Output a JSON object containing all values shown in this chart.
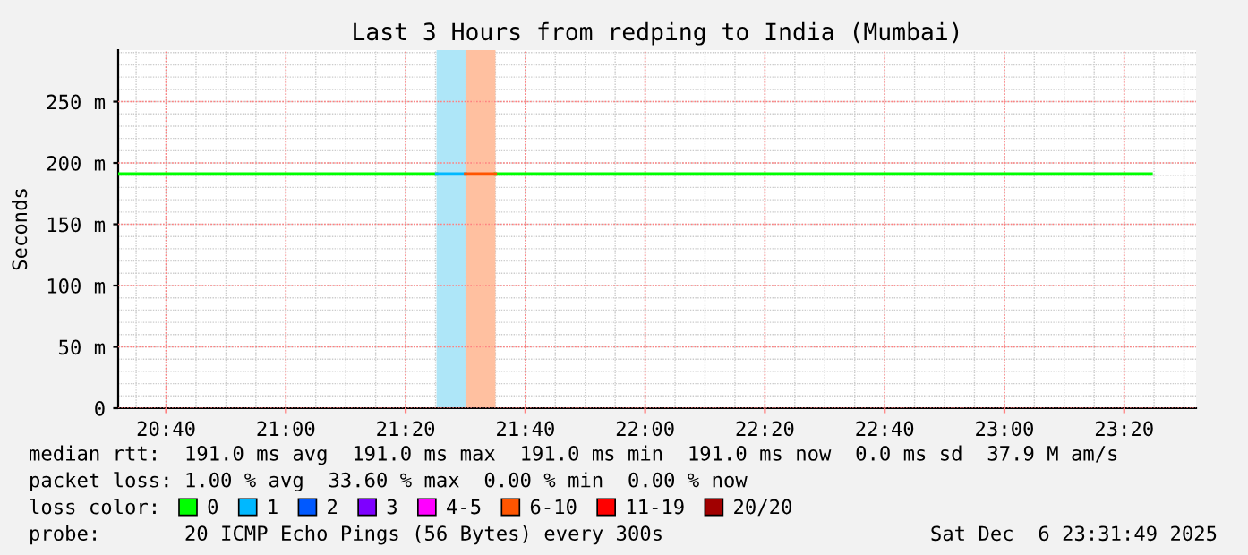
{
  "chart_data": {
    "type": "line",
    "title": "Last 3 Hours from redping to India (Mumbai)",
    "ylabel": "Seconds",
    "xlim": [
      20.5333,
      23.5333
    ],
    "xticks": [
      {
        "value": 20.6667,
        "label": "20:40"
      },
      {
        "value": 21.0,
        "label": "21:00"
      },
      {
        "value": 21.3333,
        "label": "21:20"
      },
      {
        "value": 21.6667,
        "label": "21:40"
      },
      {
        "value": 22.0,
        "label": "22:00"
      },
      {
        "value": 22.3333,
        "label": "22:20"
      },
      {
        "value": 22.6667,
        "label": "22:40"
      },
      {
        "value": 23.0,
        "label": "23:00"
      },
      {
        "value": 23.3333,
        "label": "23:20"
      }
    ],
    "ylim": [
      0,
      292
    ],
    "yticks": [
      0,
      {
        "value": 50,
        "label": "50 m"
      },
      {
        "value": 100,
        "label": "100 m"
      },
      {
        "value": 150,
        "label": "150 m"
      },
      {
        "value": 200,
        "label": "200 m"
      },
      {
        "value": 250,
        "label": "250 m"
      }
    ],
    "grid": true,
    "legend": "bottom",
    "legend_title": "loss color:",
    "series": [
      {
        "name": "0",
        "color": "#00ff00",
        "x": [
          20.5333,
          21.4194,
          21.5,
          21.5833,
          23.4083
        ],
        "values": [
          191,
          191,
          null,
          191,
          191
        ]
      },
      {
        "name": "1",
        "color": "#00b8ff",
        "x": [
          21.4194,
          21.5
        ],
        "values": [
          191,
          191
        ]
      },
      {
        "name": "2",
        "color": "#0059ff"
      },
      {
        "name": "3",
        "color": "#7e00ff"
      },
      {
        "name": "4-5",
        "color": "#ff00ff"
      },
      {
        "name": "6-10",
        "color": "#ff5500",
        "x": [
          21.5,
          21.5833
        ],
        "values": [
          191,
          191
        ]
      },
      {
        "name": "11-19",
        "color": "#ff0000"
      },
      {
        "name": "20/20",
        "color": "#a10000"
      }
    ],
    "bands": [
      {
        "axis": "x",
        "from": 21.4194,
        "to": 21.5,
        "color": "#aee6f8"
      },
      {
        "axis": "x",
        "from": 21.5,
        "to": 21.5833,
        "color": "#ffc0a0"
      }
    ],
    "annotations": [
      "median rtt:  191.0 ms avg  191.0 ms max  191.0 ms min  191.0 ms now  0.0 ms sd  37.9 M am/s",
      "packet loss: 1.00 % avg  33.60 % max  0.00 % min  0.00 % now",
      "probe:       20 ICMP Echo Pings (56 Bytes) every 300s",
      "Sat Dec  6 23:31:49 2025"
    ]
  }
}
